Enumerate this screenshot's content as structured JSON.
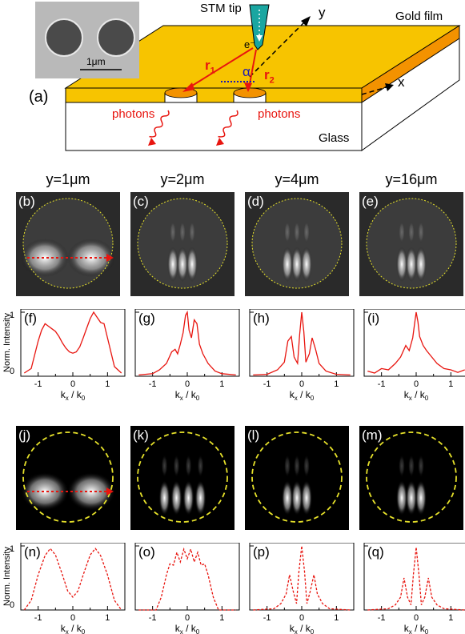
{
  "schematic": {
    "panel_label": "(a)",
    "stm_tip": "STM tip",
    "electron": "e⁻",
    "gold_film": "Gold film",
    "glass": "Glass",
    "photons_left": "photons",
    "photons_right": "photons",
    "axis_x": "x",
    "axis_y": "y",
    "r1": "r",
    "r1_sub": "1",
    "r2": "r",
    "r2_sub": "2",
    "alpha": "α",
    "scale_bar": "1μm"
  },
  "column_headers": [
    "y=1μm",
    "y=2μm",
    "y=4μm",
    "y=16μm"
  ],
  "exp_images": [
    {
      "label": "(b)",
      "lobes": [
        0.32,
        0.68
      ],
      "mode": "broad"
    },
    {
      "label": "(c)",
      "lobes": [
        0.5
      ],
      "mode": "fringes3"
    },
    {
      "label": "(d)",
      "lobes": [
        0.5
      ],
      "mode": "fringes3"
    },
    {
      "label": "(e)",
      "lobes": [
        0.5
      ],
      "mode": "fringes3"
    }
  ],
  "sim_images": [
    {
      "label": "(j)",
      "mode": "broad"
    },
    {
      "label": "(k)",
      "mode": "fringes4"
    },
    {
      "label": "(l)",
      "mode": "fringes3"
    },
    {
      "label": "(m)",
      "mode": "fringes3"
    }
  ],
  "profile_axes": {
    "ylabel": "Norm. Intensity",
    "xlabel": "k",
    "xlabel_sub": "x",
    "xlabel_mid": " / k",
    "xlabel_sub2": "0",
    "xticks": [
      "-1",
      "0",
      "1"
    ],
    "yticks": [
      "0",
      "1"
    ],
    "xlim": [
      -1.5,
      1.5
    ],
    "ylim": [
      0,
      1.05
    ]
  },
  "chart_data": [
    {
      "type": "line",
      "label": "(f)",
      "style": "solid",
      "x": [
        -1.4,
        -1.2,
        -1.0,
        -0.9,
        -0.8,
        -0.7,
        -0.6,
        -0.5,
        -0.4,
        -0.3,
        -0.2,
        -0.1,
        0.0,
        0.1,
        0.2,
        0.3,
        0.4,
        0.5,
        0.6,
        0.7,
        0.8,
        0.9,
        1.0,
        1.2,
        1.4
      ],
      "y": [
        0.05,
        0.12,
        0.55,
        0.72,
        0.82,
        0.78,
        0.74,
        0.7,
        0.62,
        0.52,
        0.44,
        0.38,
        0.36,
        0.38,
        0.46,
        0.6,
        0.75,
        0.9,
        1.0,
        0.92,
        0.84,
        0.82,
        0.6,
        0.15,
        0.05
      ]
    },
    {
      "type": "line",
      "label": "(g)",
      "style": "solid",
      "x": [
        -1.4,
        -1.0,
        -0.8,
        -0.6,
        -0.45,
        -0.35,
        -0.28,
        -0.2,
        -0.12,
        -0.05,
        0.0,
        0.05,
        0.12,
        0.2,
        0.28,
        0.35,
        0.45,
        0.6,
        0.8,
        1.0,
        1.4
      ],
      "y": [
        0.02,
        0.04,
        0.1,
        0.2,
        0.38,
        0.42,
        0.35,
        0.5,
        0.68,
        0.95,
        1.0,
        0.72,
        0.6,
        0.88,
        0.82,
        0.5,
        0.35,
        0.2,
        0.08,
        0.04,
        0.02
      ]
    },
    {
      "type": "line",
      "label": "(h)",
      "style": "solid",
      "x": [
        -1.4,
        -1.0,
        -0.7,
        -0.5,
        -0.4,
        -0.3,
        -0.22,
        -0.12,
        -0.06,
        0.0,
        0.06,
        0.12,
        0.22,
        0.3,
        0.4,
        0.5,
        0.7,
        1.0,
        1.4
      ],
      "y": [
        0.02,
        0.03,
        0.1,
        0.22,
        0.55,
        0.62,
        0.3,
        0.2,
        0.65,
        1.0,
        0.7,
        0.22,
        0.35,
        0.6,
        0.42,
        0.2,
        0.08,
        0.03,
        0.02
      ]
    },
    {
      "type": "line",
      "label": "(i)",
      "style": "solid",
      "x": [
        -1.4,
        -1.2,
        -1.0,
        -0.8,
        -0.6,
        -0.45,
        -0.3,
        -0.2,
        -0.1,
        -0.05,
        0.0,
        0.05,
        0.1,
        0.2,
        0.3,
        0.45,
        0.6,
        0.8,
        1.0,
        1.2,
        1.4
      ],
      "y": [
        0.08,
        0.05,
        0.12,
        0.1,
        0.2,
        0.3,
        0.48,
        0.4,
        0.6,
        0.8,
        1.0,
        0.85,
        0.62,
        0.48,
        0.4,
        0.3,
        0.2,
        0.12,
        0.1,
        0.06,
        0.1
      ]
    },
    {
      "type": "line",
      "label": "(n)",
      "style": "dashed",
      "x": [
        -1.4,
        -1.2,
        -1.0,
        -0.8,
        -0.65,
        -0.5,
        -0.3,
        -0.15,
        0.0,
        0.15,
        0.3,
        0.5,
        0.65,
        0.8,
        1.0,
        1.2,
        1.4
      ],
      "y": [
        0.0,
        0.15,
        0.55,
        0.85,
        0.96,
        0.86,
        0.55,
        0.3,
        0.2,
        0.3,
        0.55,
        0.86,
        0.96,
        0.85,
        0.55,
        0.15,
        0.0
      ]
    },
    {
      "type": "line",
      "label": "(o)",
      "style": "dashed",
      "x": [
        -1.4,
        -0.9,
        -0.75,
        -0.6,
        -0.5,
        -0.4,
        -0.3,
        -0.2,
        -0.1,
        0.0,
        0.1,
        0.2,
        0.3,
        0.4,
        0.5,
        0.6,
        0.75,
        0.9,
        1.4
      ],
      "y": [
        0.0,
        0.0,
        0.2,
        0.55,
        0.72,
        0.7,
        0.9,
        0.75,
        0.95,
        0.8,
        0.95,
        0.75,
        0.9,
        0.7,
        0.72,
        0.55,
        0.2,
        0.0,
        0.0
      ]
    },
    {
      "type": "line",
      "label": "(p)",
      "style": "dashed",
      "x": [
        -1.4,
        -0.8,
        -0.6,
        -0.45,
        -0.35,
        -0.25,
        -0.15,
        -0.08,
        0.0,
        0.08,
        0.15,
        0.25,
        0.35,
        0.45,
        0.6,
        0.8,
        1.4
      ],
      "y": [
        0.0,
        0.02,
        0.1,
        0.25,
        0.55,
        0.3,
        0.1,
        0.6,
        1.0,
        0.6,
        0.1,
        0.3,
        0.55,
        0.25,
        0.1,
        0.02,
        0.0
      ]
    },
    {
      "type": "line",
      "label": "(q)",
      "style": "dashed",
      "x": [
        -1.4,
        -0.8,
        -0.6,
        -0.45,
        -0.35,
        -0.25,
        -0.15,
        -0.08,
        0.0,
        0.08,
        0.15,
        0.25,
        0.35,
        0.45,
        0.6,
        0.8,
        1.4
      ],
      "y": [
        0.0,
        0.02,
        0.08,
        0.2,
        0.5,
        0.2,
        0.08,
        0.55,
        0.98,
        0.55,
        0.08,
        0.2,
        0.5,
        0.2,
        0.08,
        0.02,
        0.0
      ]
    }
  ],
  "colors": {
    "gold": "#f7c400",
    "gold_edge": "#f39200",
    "red": "#e8150f",
    "yellow_circle": "#e6e12a",
    "tip": "#1aa6a1"
  }
}
